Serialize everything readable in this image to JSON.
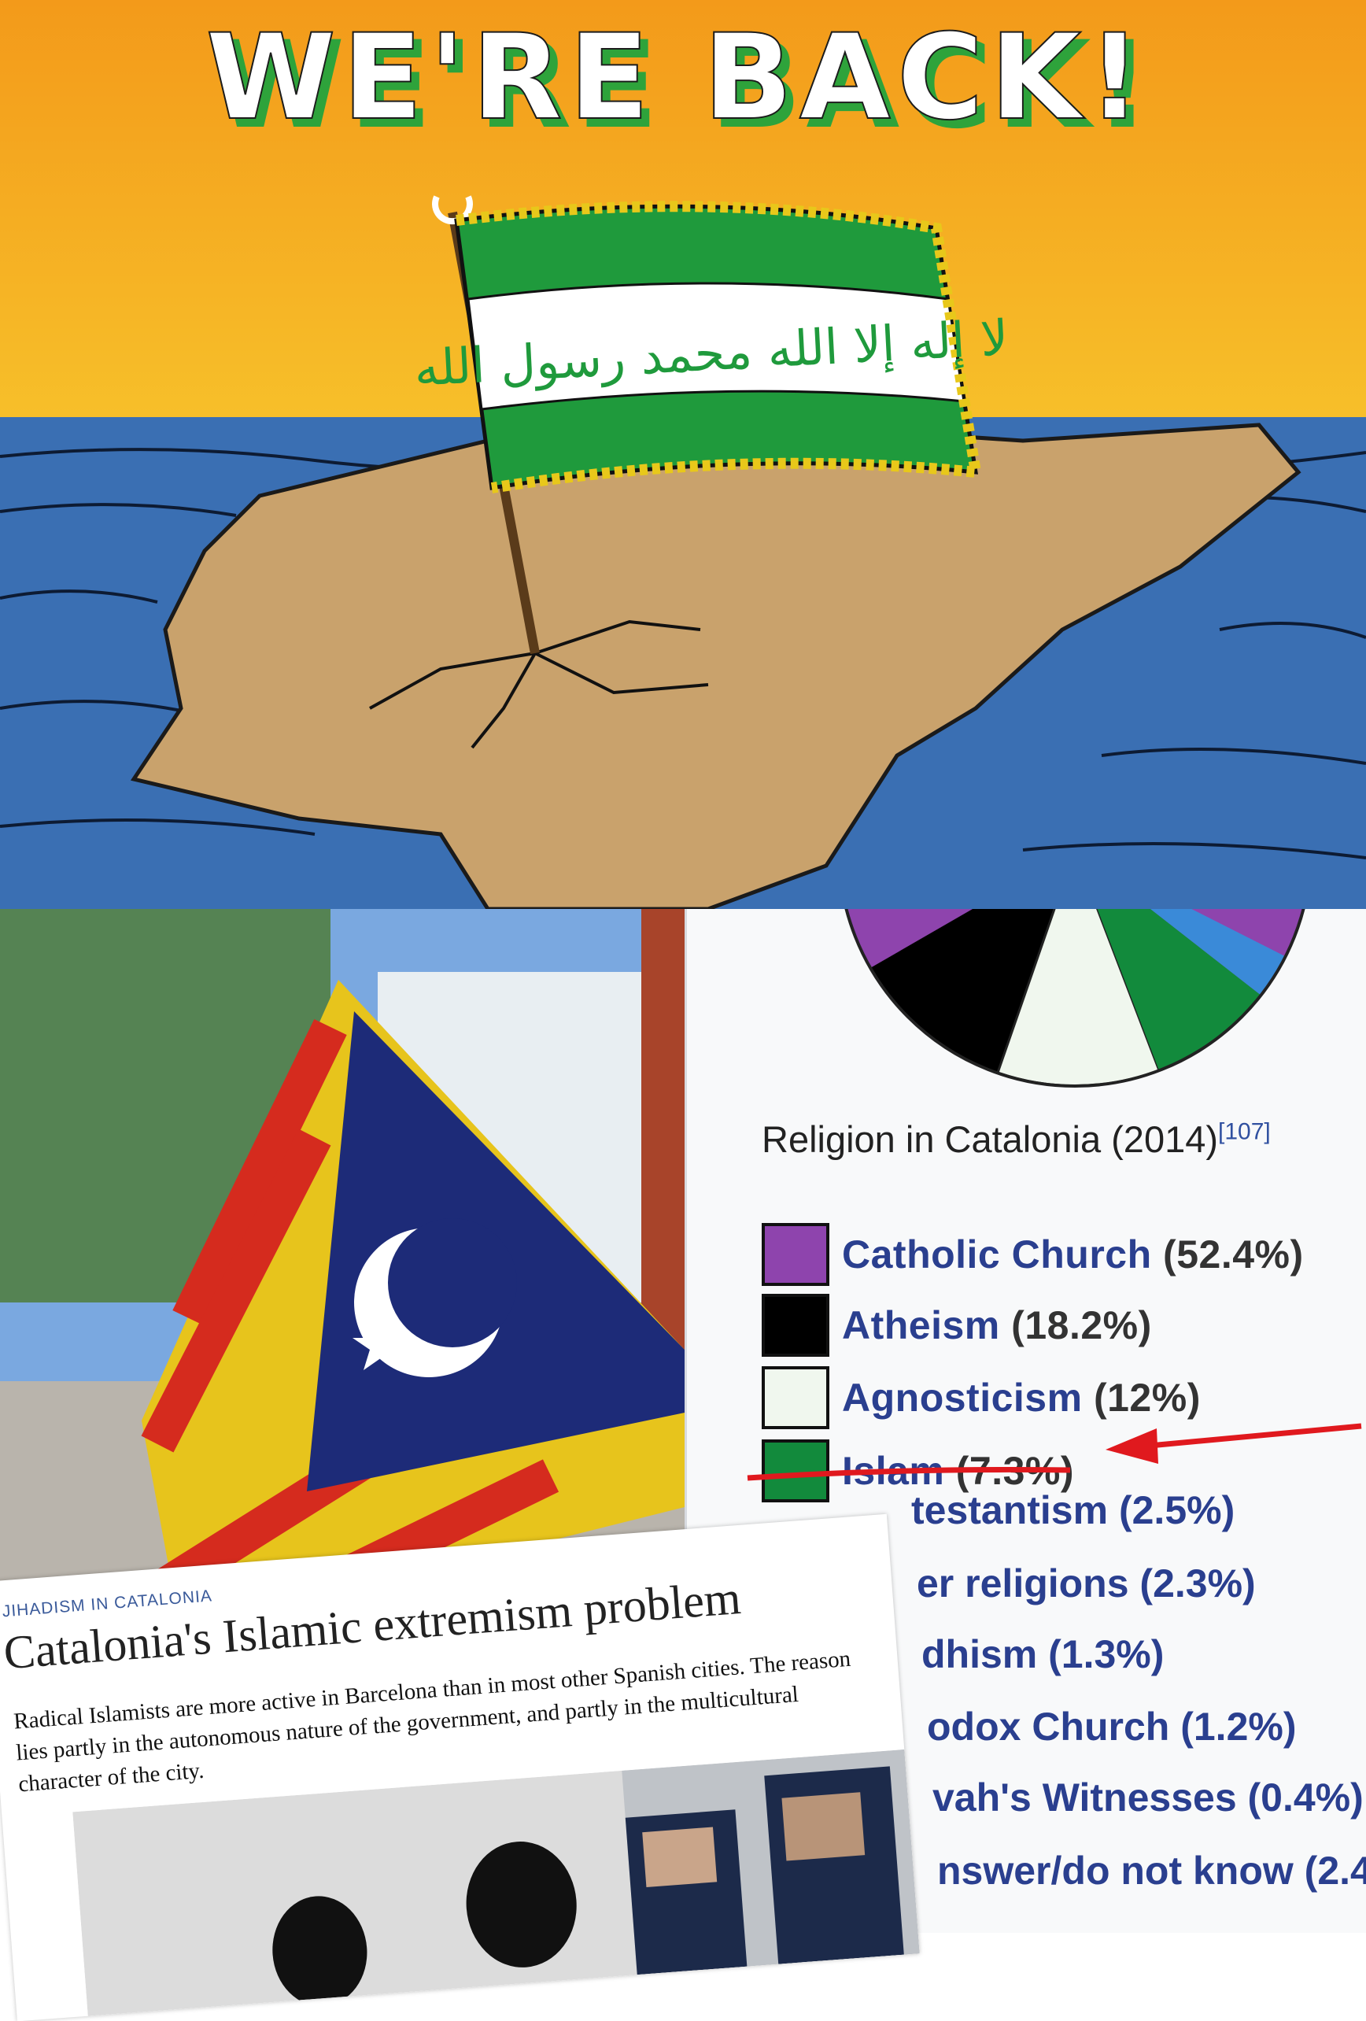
{
  "cartoon": {
    "headline": "WE'RE BACK!",
    "flag_text": "لا إله إلا الله محمد رسول الله",
    "colors": {
      "sky": "#f7a21b",
      "sea": "#3a6fb3",
      "land": "#c9a26c",
      "flag_green": "#1f9a3c"
    }
  },
  "photo": {
    "subject": "catalan-flag-with-crescent"
  },
  "wiki": {
    "title": "Religion in Catalonia (2014)",
    "ref": "[107]",
    "legend": [
      {
        "label": "Catholic Church",
        "pct": "(52.4%)",
        "color": "#8e44ad"
      },
      {
        "label": "Atheism",
        "pct": "(18.2%)",
        "color": "#000000"
      },
      {
        "label": "Agnosticism",
        "pct": "(12%)",
        "color": "#f0f7ee"
      },
      {
        "label": "Islam",
        "pct": "(7.3%)",
        "color": "#128a3c"
      }
    ],
    "partial_items": [
      "testantism (2.5%)",
      "er religions (2.3%)",
      "dhism (1.3%)",
      "odox Church (1.2%)",
      "vah's Witnesses (0.4%)",
      "nswer/do not know (2.4%"
    ],
    "highlight_color": "#e0191e"
  },
  "chart_data": {
    "type": "pie",
    "title": "Religion in Catalonia (2014)",
    "categories": [
      "Catholic Church",
      "Atheism",
      "Agnosticism",
      "Islam",
      "Protestantism",
      "Other religions",
      "Buddhism",
      "Orthodox Church",
      "Jehovah's Witnesses",
      "No answer/do not know"
    ],
    "values": [
      52.4,
      18.2,
      12,
      7.3,
      2.5,
      2.3,
      1.3,
      1.2,
      0.4,
      2.4
    ]
  },
  "article": {
    "kicker": "JIHADISM IN CATALONIA",
    "headline": "Catalonia's Islamic extremism problem",
    "body": "Radical Islamists are more active in Barcelona than in most other Spanish cities. The reason lies partly in the autonomous nature of the government, and partly in the multicultural character of the city."
  }
}
